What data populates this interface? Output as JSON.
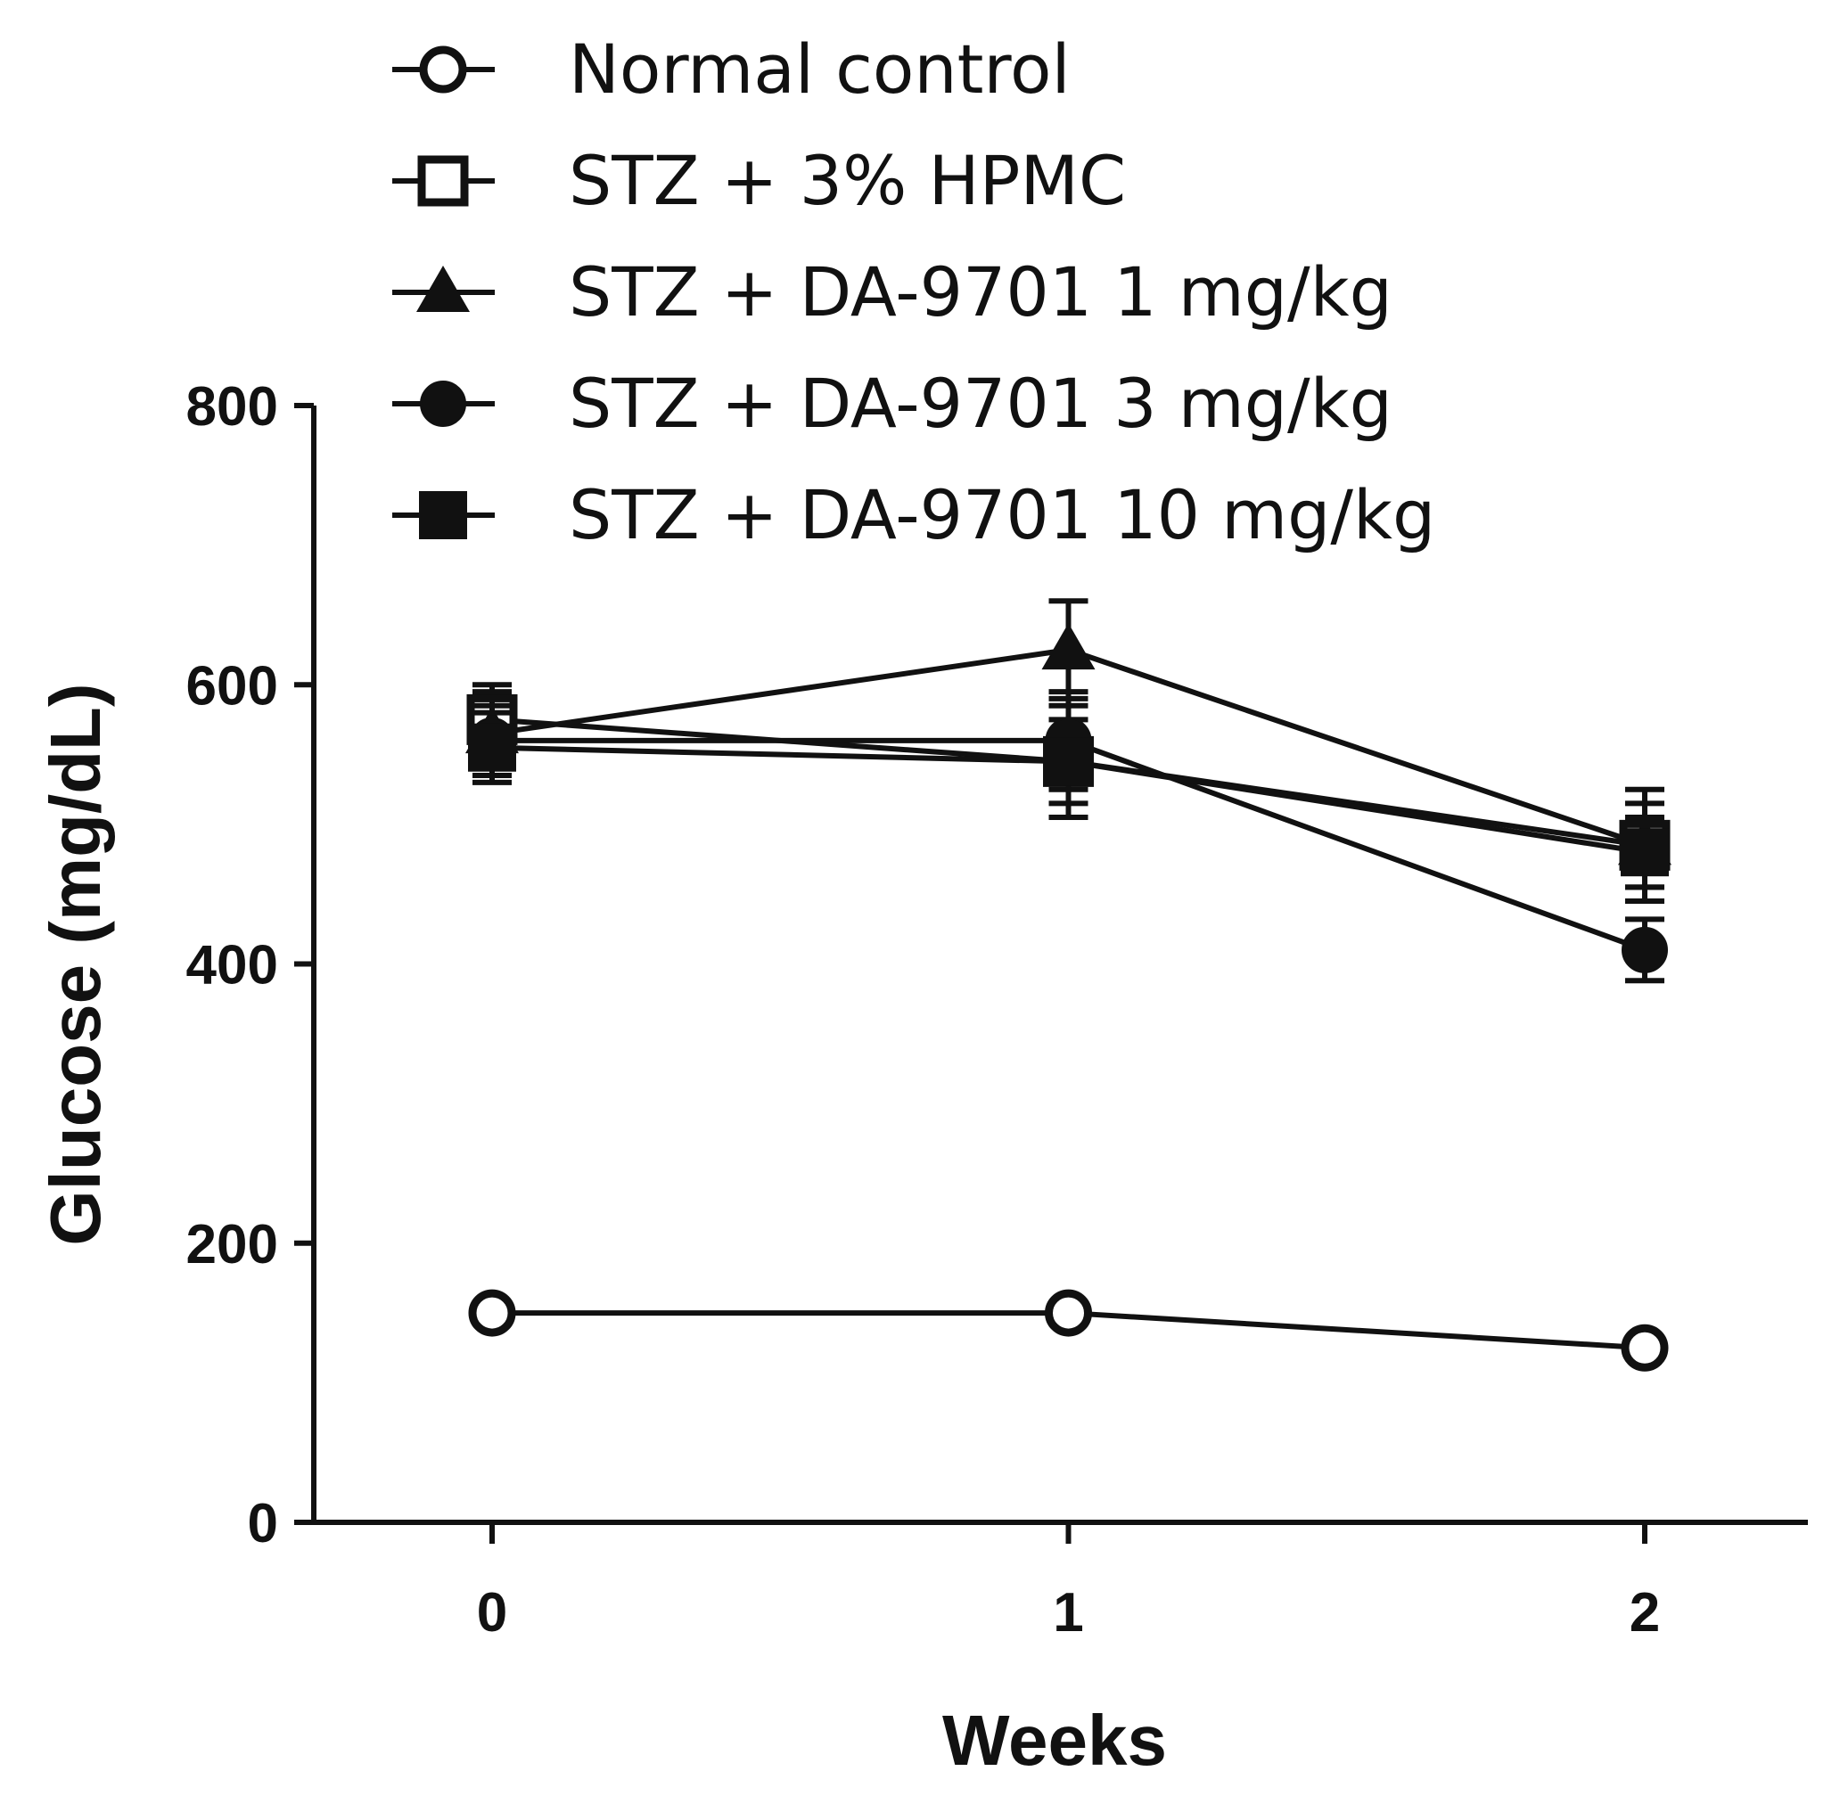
{
  "chart_data": {
    "type": "line",
    "title": "",
    "xlabel": "Weeks",
    "ylabel": "Glucose (mg/dL)",
    "x": [
      0,
      1,
      2
    ],
    "x_tick_labels": [
      "0",
      "1",
      "2"
    ],
    "xlim": [
      -0.3,
      2.3
    ],
    "ylim": [
      0,
      800
    ],
    "y_ticks": [
      0,
      200,
      400,
      600,
      800
    ],
    "y_tick_labels": [
      "0",
      "200",
      "400",
      "600",
      "800"
    ],
    "grid": false,
    "legend_position": "top",
    "series": [
      {
        "name": "Normal control",
        "marker": "open-circle",
        "values": [
          150,
          150,
          125
        ],
        "errors": [
          6,
          6,
          6
        ]
      },
      {
        "name": "STZ + 3% HPMC",
        "marker": "open-square",
        "values": [
          575,
          545,
          485
        ],
        "errors": [
          25,
          30,
          30
        ]
      },
      {
        "name": "STZ + DA-9701 1 mg/kg",
        "marker": "filled-triangle",
        "values": [
          565,
          625,
          485
        ],
        "errors": [
          30,
          35,
          40
        ]
      },
      {
        "name": "STZ + DA-9701 3 mg/kg",
        "marker": "filled-circle",
        "values": [
          560,
          560,
          410
        ],
        "errors": [
          25,
          35,
          22
        ]
      },
      {
        "name": "STZ + DA-9701 10 mg/kg",
        "marker": "filled-square",
        "values": [
          555,
          545,
          480
        ],
        "errors": [
          25,
          40,
          25
        ]
      }
    ],
    "colors": {
      "line": "#111111",
      "background": "#ffffff"
    }
  }
}
